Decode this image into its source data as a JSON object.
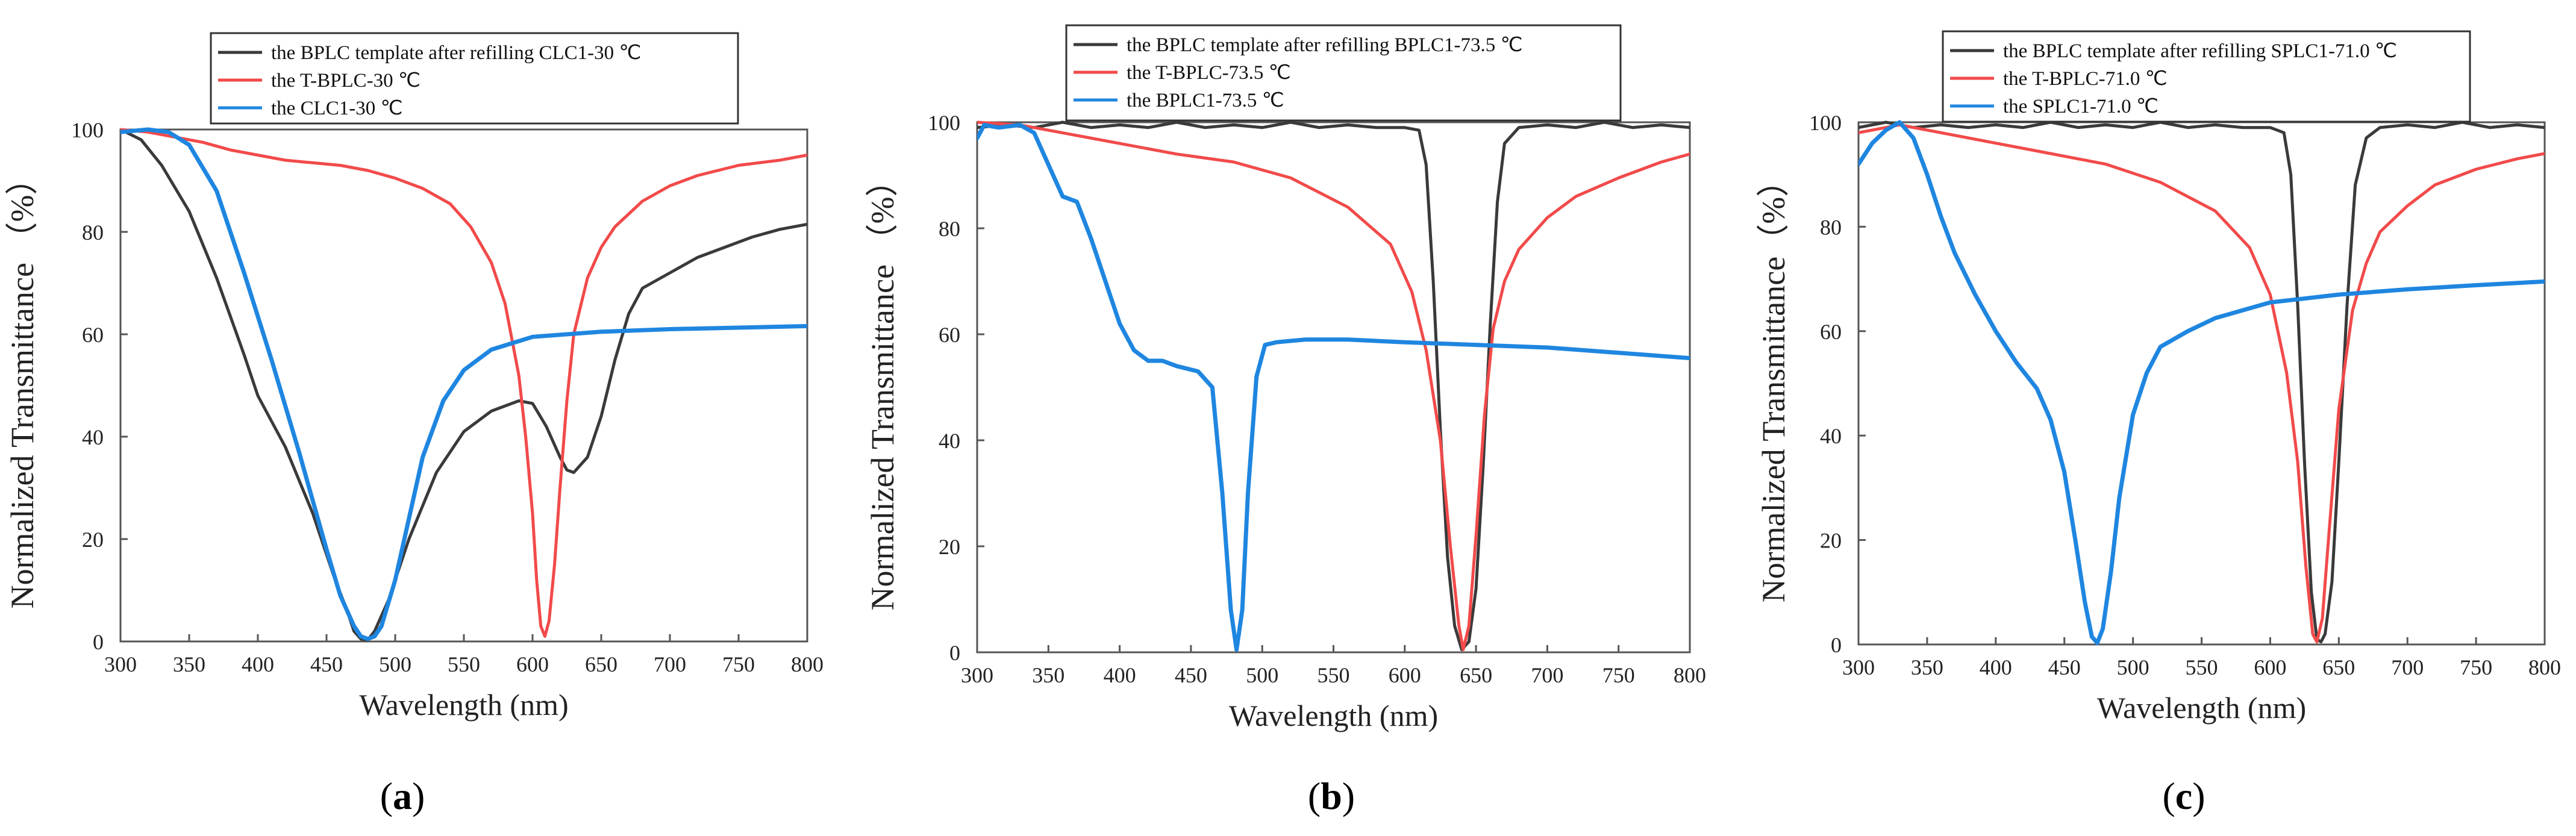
{
  "colors": {
    "template": "#3a3a3a",
    "tbplc": "#f24a4a",
    "lc": "#1f86e0"
  },
  "chart_data": [
    {
      "type": "line",
      "panel_label": "(a)",
      "panel_letter": "a",
      "xlabel": "Wavelength (nm)",
      "ylabel": "Normalized Transmittance （%）",
      "xlim": [
        300,
        800
      ],
      "ylim": [
        0,
        100
      ],
      "xticks": [
        300,
        350,
        400,
        450,
        500,
        550,
        600,
        650,
        700,
        750,
        800
      ],
      "yticks": [
        0,
        20,
        40,
        60,
        80,
        100
      ],
      "series": [
        {
          "name": "the BPLC template after refilling CLC1-30 ℃",
          "color_key": "template",
          "x": [
            300,
            315,
            330,
            350,
            370,
            390,
            400,
            420,
            440,
            455,
            465,
            470,
            475,
            480,
            485,
            495,
            510,
            530,
            550,
            570,
            590,
            600,
            610,
            620,
            625,
            630,
            640,
            650,
            660,
            670,
            680,
            700,
            720,
            740,
            760,
            780,
            800
          ],
          "y": [
            100,
            98,
            93,
            84,
            71,
            56,
            48,
            38,
            25,
            13,
            6,
            2,
            0.5,
            0.3,
            2,
            8,
            20,
            33,
            41,
            45,
            47,
            46.5,
            42,
            36,
            33.5,
            33,
            36,
            44,
            55,
            64,
            69,
            72,
            75,
            77,
            79,
            80.5,
            81.5
          ]
        },
        {
          "name": "the T-BPLC-30 ℃",
          "color_key": "tbplc",
          "x": [
            300,
            320,
            340,
            360,
            380,
            400,
            420,
            440,
            460,
            480,
            500,
            520,
            540,
            555,
            570,
            580,
            590,
            595,
            600,
            603,
            606,
            609,
            612,
            616,
            620,
            625,
            630,
            640,
            650,
            660,
            680,
            700,
            720,
            750,
            780,
            800
          ],
          "y": [
            100,
            99.5,
            98.5,
            97.5,
            96,
            95,
            94,
            93.5,
            93,
            92,
            90.5,
            88.5,
            85.5,
            81,
            74,
            66,
            52,
            40,
            25,
            12,
            3,
            1,
            4,
            15,
            30,
            47,
            60,
            71,
            77,
            81,
            86,
            89,
            91,
            93,
            94,
            95
          ]
        },
        {
          "name": "the CLC1-30 ℃",
          "color_key": "lc",
          "x": [
            300,
            320,
            335,
            350,
            370,
            390,
            410,
            430,
            450,
            460,
            470,
            475,
            480,
            485,
            490,
            500,
            510,
            520,
            535,
            550,
            570,
            600,
            650,
            700,
            750,
            800
          ],
          "y": [
            99.5,
            100,
            99.5,
            97,
            88,
            72,
            55,
            37,
            18,
            9,
            3,
            1,
            0.5,
            1,
            3,
            12,
            24,
            36,
            47,
            53,
            57,
            59.5,
            60.5,
            61,
            61.3,
            61.6
          ]
        }
      ]
    },
    {
      "type": "line",
      "panel_label": "(b)",
      "panel_letter": "b",
      "xlabel": "Wavelength (nm)",
      "ylabel": "Normalized Transmittance （%）",
      "xlim": [
        300,
        800
      ],
      "ylim": [
        0,
        100
      ],
      "xticks": [
        300,
        350,
        400,
        450,
        500,
        550,
        600,
        650,
        700,
        750,
        800
      ],
      "yticks": [
        0,
        20,
        40,
        60,
        80,
        100
      ],
      "series": [
        {
          "name": "the BPLC template after refilling BPLC1-73.5 ℃",
          "color_key": "template",
          "x": [
            300,
            320,
            340,
            360,
            380,
            400,
            420,
            440,
            460,
            480,
            500,
            520,
            540,
            560,
            580,
            600,
            610,
            615,
            620,
            625,
            630,
            635,
            640,
            645,
            650,
            655,
            660,
            665,
            670,
            680,
            700,
            720,
            740,
            760,
            780,
            800
          ],
          "y": [
            99,
            99.5,
            99,
            100,
            99,
            99.5,
            99,
            100,
            99,
            99.5,
            99,
            100,
            99,
            99.5,
            99,
            99,
            98.5,
            92,
            70,
            42,
            18,
            5,
            0.5,
            2,
            12,
            35,
            62,
            85,
            96,
            99,
            99.5,
            99,
            100,
            99,
            99.5,
            99
          ]
        },
        {
          "name": "the T-BPLC-73.5 ℃",
          "color_key": "tbplc",
          "x": [
            300,
            330,
            360,
            400,
            440,
            480,
            520,
            560,
            590,
            605,
            615,
            625,
            632,
            638,
            641,
            645,
            650,
            656,
            662,
            670,
            680,
            700,
            720,
            750,
            780,
            800
          ],
          "y": [
            100,
            99.5,
            98,
            96,
            94,
            92.5,
            89.5,
            84,
            77,
            68,
            57,
            40,
            20,
            5,
            0.5,
            5,
            22,
            45,
            61,
            70,
            76,
            82,
            86,
            89.5,
            92.5,
            94
          ]
        },
        {
          "name": "the BPLC1-73.5 ℃",
          "color_key": "lc",
          "x": [
            300,
            305,
            315,
            330,
            340,
            350,
            360,
            370,
            380,
            390,
            400,
            410,
            420,
            430,
            440,
            455,
            465,
            472,
            478,
            482,
            486,
            490,
            496,
            502,
            510,
            530,
            560,
            600,
            650,
            700,
            750,
            800
          ],
          "y": [
            97,
            99.5,
            99,
            99.5,
            98,
            92,
            86,
            85,
            78,
            70,
            62,
            57,
            55,
            55,
            54,
            53,
            50,
            30,
            8,
            0.5,
            8,
            30,
            52,
            58,
            58.5,
            59,
            59,
            58.5,
            58,
            57.5,
            56.5,
            55.5
          ]
        }
      ]
    },
    {
      "type": "line",
      "panel_label": "(c)",
      "panel_letter": "c",
      "xlabel": "Wavelength (nm)",
      "ylabel": "Normalized Transmittance（%）",
      "xlim": [
        300,
        800
      ],
      "ylim": [
        0,
        100
      ],
      "xticks": [
        300,
        350,
        400,
        450,
        500,
        550,
        600,
        650,
        700,
        750,
        800
      ],
      "yticks": [
        0,
        20,
        40,
        60,
        80,
        100
      ],
      "series": [
        {
          "name": "the BPLC template after refilling SPLC1-71.0 ℃",
          "color_key": "template",
          "x": [
            300,
            320,
            340,
            360,
            380,
            400,
            420,
            440,
            460,
            480,
            500,
            520,
            540,
            560,
            580,
            600,
            610,
            615,
            620,
            625,
            630,
            634,
            637,
            640,
            645,
            650,
            656,
            662,
            670,
            680,
            700,
            720,
            740,
            760,
            780,
            800
          ],
          "y": [
            99,
            100,
            99,
            99.5,
            99,
            99.5,
            99,
            100,
            99,
            99.5,
            99,
            100,
            99,
            99.5,
            99,
            99,
            98,
            90,
            65,
            35,
            10,
            1,
            0.5,
            2,
            12,
            35,
            65,
            88,
            97,
            99,
            99.5,
            99,
            100,
            99,
            99.5,
            99
          ]
        },
        {
          "name": "the T-BPLC-71.0 ℃",
          "color_key": "tbplc",
          "x": [
            300,
            330,
            360,
            400,
            440,
            480,
            520,
            560,
            585,
            600,
            612,
            620,
            626,
            631,
            634,
            638,
            643,
            650,
            660,
            670,
            680,
            700,
            720,
            750,
            780,
            800
          ],
          "y": [
            98,
            99.5,
            98,
            96,
            94,
            92,
            88.5,
            83,
            76,
            67,
            52,
            35,
            15,
            2,
            0.5,
            5,
            22,
            45,
            64,
            73,
            79,
            84,
            88,
            91,
            93,
            94
          ]
        },
        {
          "name": "the SPLC1-71.0 ℃",
          "color_key": "lc",
          "x": [
            300,
            310,
            320,
            330,
            340,
            350,
            360,
            370,
            385,
            400,
            415,
            430,
            440,
            450,
            458,
            465,
            470,
            474,
            478,
            484,
            490,
            500,
            510,
            520,
            540,
            560,
            580,
            600,
            650,
            700,
            750,
            800
          ],
          "y": [
            92,
            96,
            98.5,
            100,
            97,
            90,
            82,
            75,
            67,
            60,
            54,
            49,
            43,
            33,
            20,
            8,
            1.5,
            0.3,
            3,
            14,
            28,
            44,
            52,
            57,
            60,
            62.5,
            64,
            65.5,
            67,
            68,
            68.8,
            69.5
          ]
        }
      ]
    }
  ]
}
